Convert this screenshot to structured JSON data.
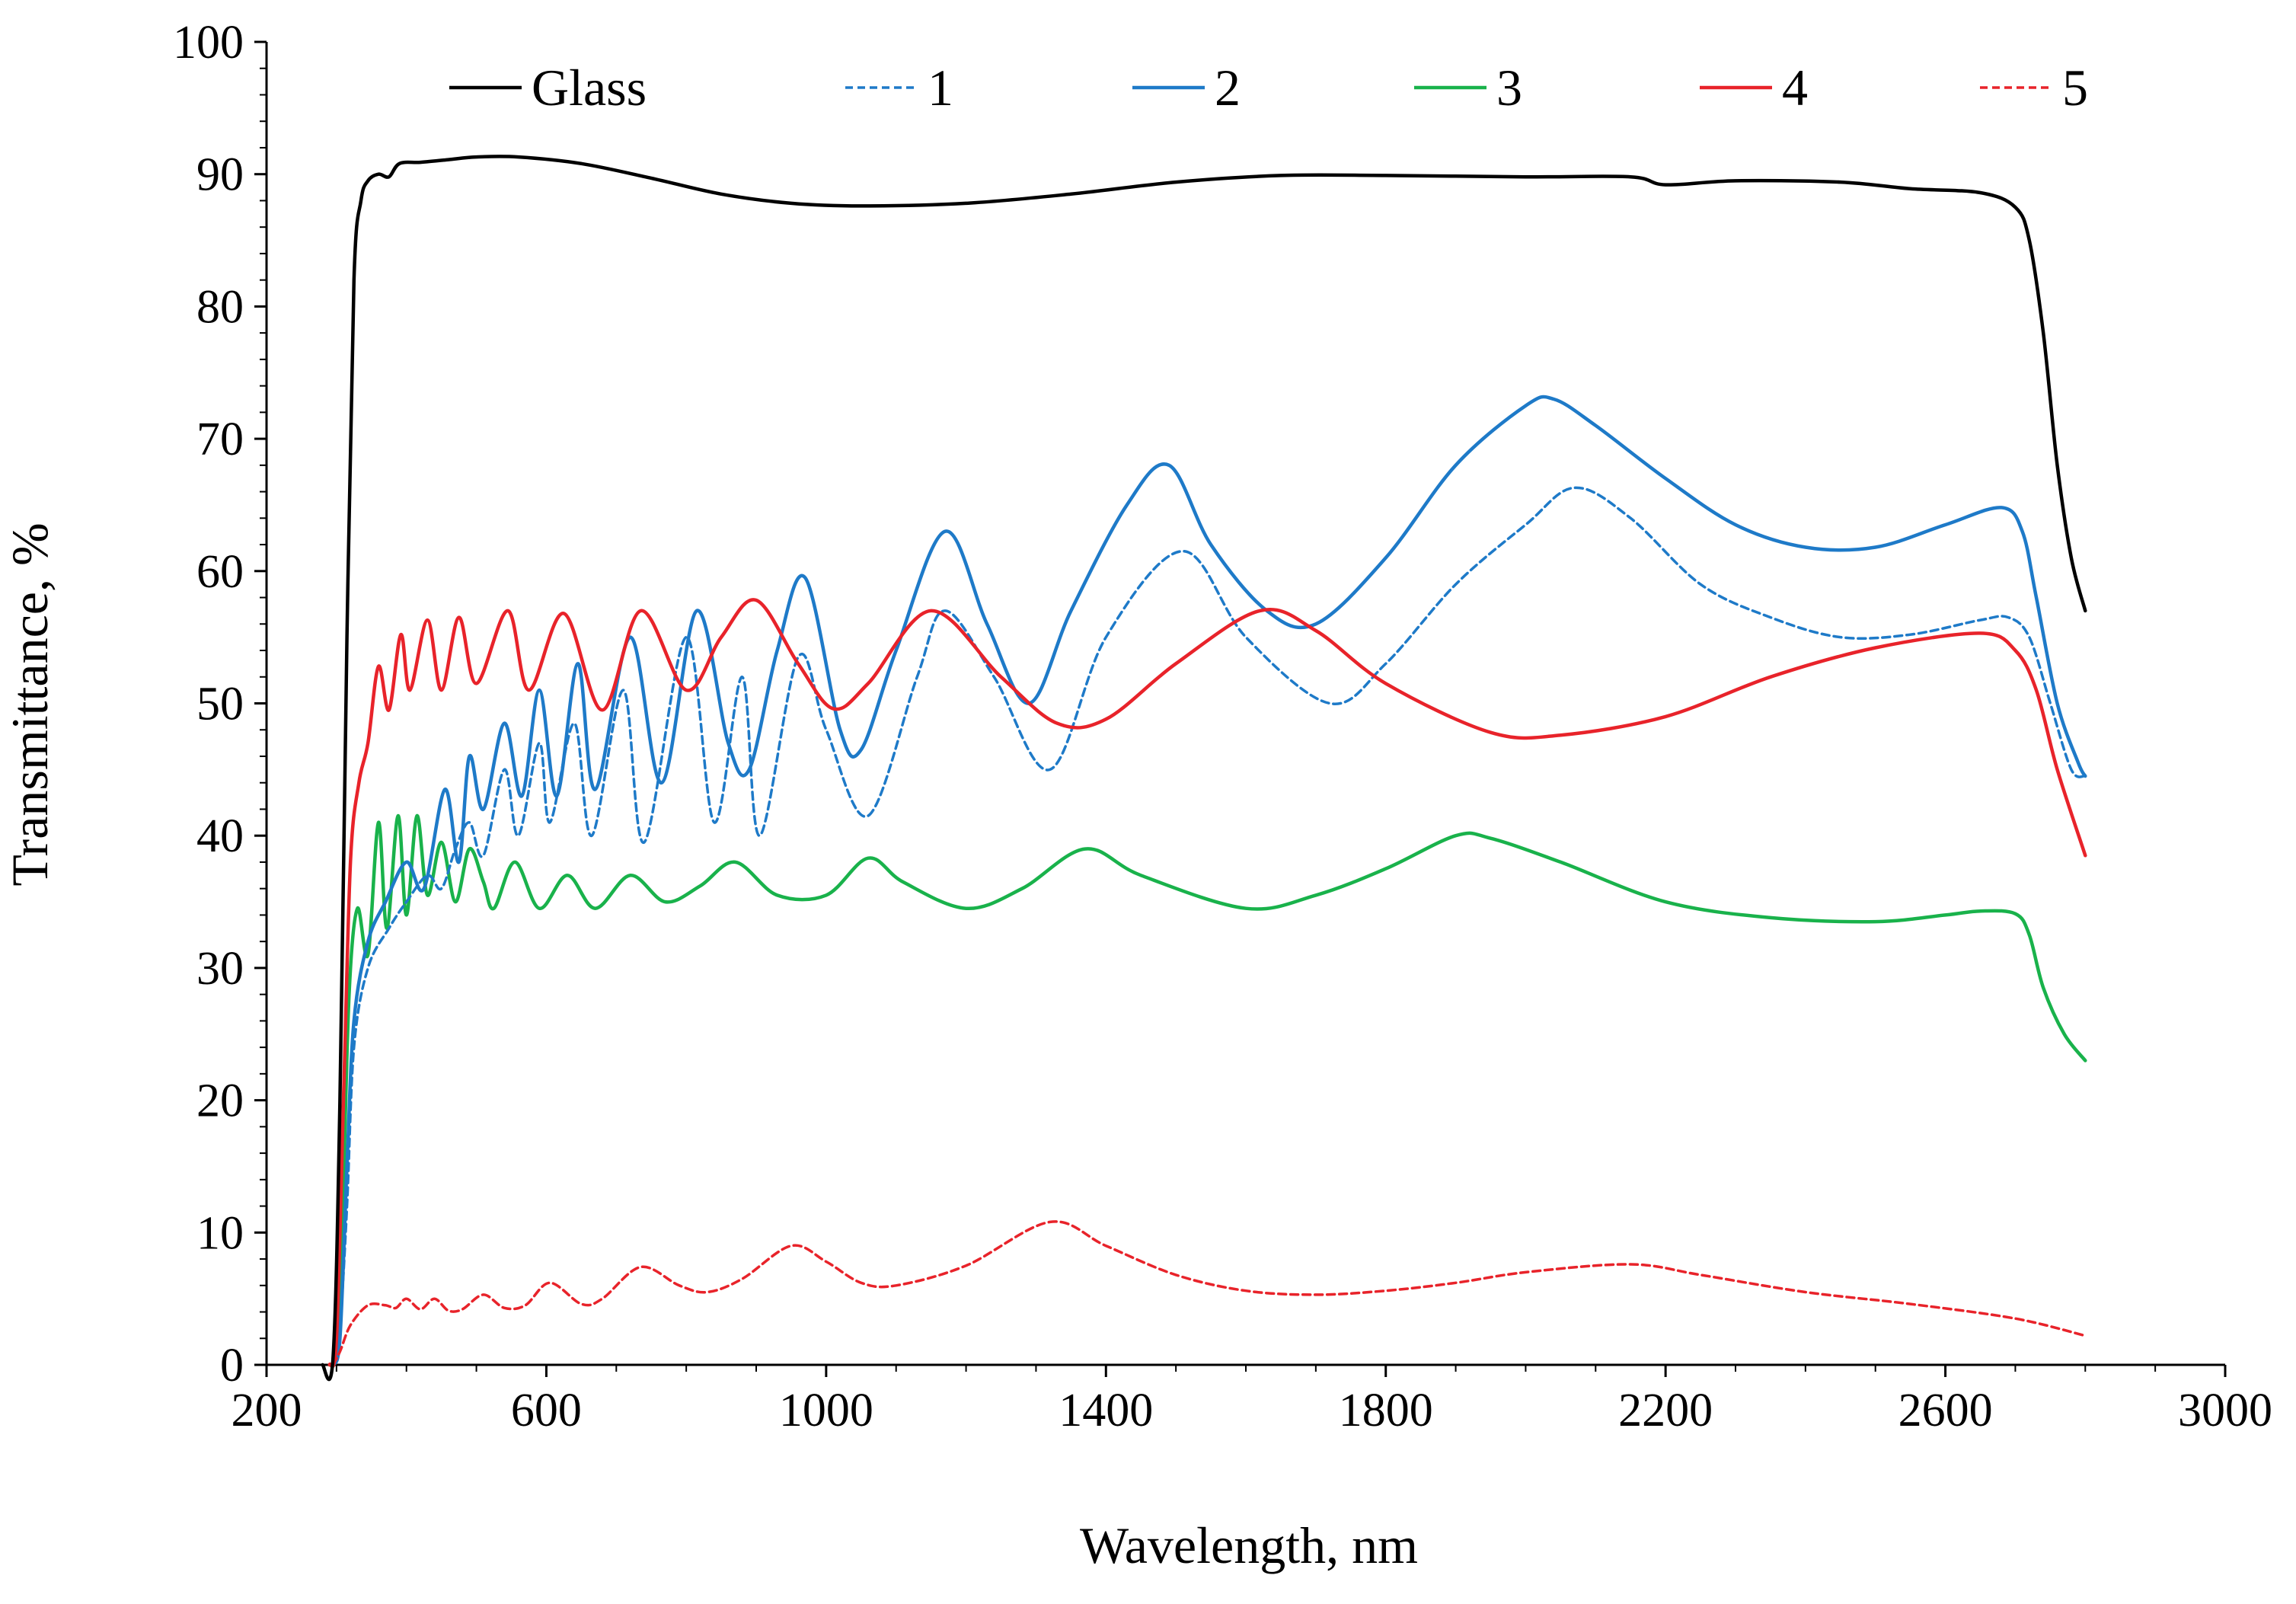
{
  "chart_data": {
    "type": "line",
    "title": "",
    "xlabel": "Wavelength, nm",
    "ylabel": "Transmittance, %",
    "xlim": [
      200,
      3000
    ],
    "ylim": [
      0,
      100
    ],
    "x_ticks": [
      200,
      600,
      1000,
      1400,
      1800,
      2200,
      2600,
      3000
    ],
    "y_ticks": [
      0,
      10,
      20,
      30,
      40,
      50,
      60,
      70,
      80,
      90,
      100
    ],
    "x_tick_labels": [
      "200",
      "600",
      "1000",
      "1400",
      "1800",
      "2200",
      "2600",
      "3000"
    ],
    "y_tick_labels": [
      "0",
      "10",
      "20",
      "30",
      "40",
      "50",
      "60",
      "70",
      "80",
      "90",
      "100"
    ],
    "legend_position": "top",
    "series": [
      {
        "name": "Glass",
        "color": "#000000",
        "dash": "solid",
        "points": [
          [
            280,
            0
          ],
          [
            295,
            0.5
          ],
          [
            305,
            20
          ],
          [
            315,
            55
          ],
          [
            325,
            82
          ],
          [
            335,
            88
          ],
          [
            345,
            89.5
          ],
          [
            360,
            90
          ],
          [
            375,
            89.8
          ],
          [
            390,
            90.8
          ],
          [
            420,
            90.9
          ],
          [
            460,
            91.1
          ],
          [
            500,
            91.3
          ],
          [
            560,
            91.3
          ],
          [
            650,
            90.8
          ],
          [
            750,
            89.7
          ],
          [
            850,
            88.5
          ],
          [
            950,
            87.8
          ],
          [
            1050,
            87.6
          ],
          [
            1200,
            87.8
          ],
          [
            1350,
            88.5
          ],
          [
            1500,
            89.4
          ],
          [
            1650,
            89.9
          ],
          [
            1800,
            89.9
          ],
          [
            2000,
            89.8
          ],
          [
            2150,
            89.8
          ],
          [
            2200,
            89.2
          ],
          [
            2300,
            89.5
          ],
          [
            2450,
            89.4
          ],
          [
            2550,
            88.9
          ],
          [
            2650,
            88.6
          ],
          [
            2700,
            87.5
          ],
          [
            2720,
            85
          ],
          [
            2740,
            78
          ],
          [
            2760,
            68
          ],
          [
            2780,
            61
          ],
          [
            2800,
            57
          ]
        ]
      },
      {
        "name": "1",
        "color": "#1e7ac8",
        "dash": "dashed",
        "points": [
          [
            295,
            0
          ],
          [
            305,
            3
          ],
          [
            315,
            12
          ],
          [
            325,
            24
          ],
          [
            345,
            30
          ],
          [
            375,
            33
          ],
          [
            400,
            35
          ],
          [
            430,
            37
          ],
          [
            450,
            36
          ],
          [
            470,
            39
          ],
          [
            490,
            41
          ],
          [
            510,
            38.5
          ],
          [
            540,
            45
          ],
          [
            560,
            40
          ],
          [
            590,
            47
          ],
          [
            605,
            41
          ],
          [
            640,
            48.5
          ],
          [
            665,
            40
          ],
          [
            710,
            51
          ],
          [
            740,
            39.5
          ],
          [
            800,
            55
          ],
          [
            840,
            41
          ],
          [
            880,
            52
          ],
          [
            905,
            40
          ],
          [
            960,
            53.5
          ],
          [
            1000,
            48
          ],
          [
            1060,
            41.5
          ],
          [
            1130,
            52
          ],
          [
            1170,
            57
          ],
          [
            1240,
            52
          ],
          [
            1320,
            45
          ],
          [
            1400,
            55
          ],
          [
            1510,
            61.5
          ],
          [
            1600,
            55
          ],
          [
            1720,
            50
          ],
          [
            1800,
            53
          ],
          [
            1900,
            59
          ],
          [
            2000,
            63.5
          ],
          [
            2070,
            66.3
          ],
          [
            2150,
            64
          ],
          [
            2250,
            59
          ],
          [
            2350,
            56.5
          ],
          [
            2450,
            55
          ],
          [
            2550,
            55.2
          ],
          [
            2650,
            56.3
          ],
          [
            2690,
            56.5
          ],
          [
            2720,
            55
          ],
          [
            2750,
            50
          ],
          [
            2780,
            45
          ],
          [
            2800,
            44.5
          ]
        ]
      },
      {
        "name": "2",
        "color": "#1e7ac8",
        "dash": "solid",
        "points": [
          [
            295,
            0
          ],
          [
            305,
            2
          ],
          [
            315,
            15
          ],
          [
            325,
            26
          ],
          [
            345,
            32
          ],
          [
            370,
            35
          ],
          [
            400,
            38
          ],
          [
            425,
            36
          ],
          [
            455,
            43.5
          ],
          [
            475,
            38
          ],
          [
            490,
            46
          ],
          [
            510,
            42
          ],
          [
            540,
            48.5
          ],
          [
            565,
            43
          ],
          [
            590,
            51
          ],
          [
            615,
            43
          ],
          [
            645,
            53
          ],
          [
            670,
            43.5
          ],
          [
            720,
            55
          ],
          [
            765,
            44
          ],
          [
            815,
            57
          ],
          [
            860,
            47
          ],
          [
            890,
            45
          ],
          [
            930,
            54
          ],
          [
            970,
            59.5
          ],
          [
            1020,
            48
          ],
          [
            1050,
            46.5
          ],
          [
            1100,
            54
          ],
          [
            1170,
            63
          ],
          [
            1230,
            56
          ],
          [
            1290,
            50
          ],
          [
            1350,
            57
          ],
          [
            1430,
            65
          ],
          [
            1490,
            68
          ],
          [
            1550,
            62
          ],
          [
            1630,
            57
          ],
          [
            1700,
            56
          ],
          [
            1800,
            61
          ],
          [
            1900,
            68
          ],
          [
            2000,
            72.5
          ],
          [
            2040,
            73
          ],
          [
            2100,
            71
          ],
          [
            2200,
            67
          ],
          [
            2300,
            63.5
          ],
          [
            2400,
            61.8
          ],
          [
            2500,
            61.8
          ],
          [
            2600,
            63.5
          ],
          [
            2680,
            64.8
          ],
          [
            2710,
            63
          ],
          [
            2730,
            58
          ],
          [
            2760,
            50
          ],
          [
            2790,
            45.5
          ],
          [
            2800,
            44.5
          ]
        ]
      },
      {
        "name": "3",
        "color": "#19b24b",
        "dash": "solid",
        "points": [
          [
            290,
            0
          ],
          [
            300,
            1
          ],
          [
            308,
            10
          ],
          [
            318,
            28
          ],
          [
            330,
            34.5
          ],
          [
            345,
            31
          ],
          [
            360,
            41
          ],
          [
            372,
            33
          ],
          [
            388,
            41.5
          ],
          [
            400,
            34
          ],
          [
            415,
            41.5
          ],
          [
            430,
            35.5
          ],
          [
            450,
            39.5
          ],
          [
            470,
            35
          ],
          [
            490,
            39
          ],
          [
            510,
            36.5
          ],
          [
            525,
            34.5
          ],
          [
            555,
            38
          ],
          [
            590,
            34.5
          ],
          [
            630,
            37
          ],
          [
            670,
            34.5
          ],
          [
            720,
            37
          ],
          [
            770,
            35
          ],
          [
            820,
            36.2
          ],
          [
            870,
            38
          ],
          [
            930,
            35.5
          ],
          [
            1000,
            35.5
          ],
          [
            1060,
            38.3
          ],
          [
            1110,
            36.5
          ],
          [
            1200,
            34.5
          ],
          [
            1280,
            36
          ],
          [
            1370,
            39
          ],
          [
            1450,
            37
          ],
          [
            1600,
            34.5
          ],
          [
            1700,
            35.5
          ],
          [
            1800,
            37.5
          ],
          [
            1900,
            40
          ],
          [
            1950,
            39.8
          ],
          [
            2050,
            38
          ],
          [
            2200,
            35
          ],
          [
            2350,
            33.8
          ],
          [
            2500,
            33.5
          ],
          [
            2600,
            34
          ],
          [
            2650,
            34.3
          ],
          [
            2700,
            34.1
          ],
          [
            2720,
            32.5
          ],
          [
            2740,
            28.5
          ],
          [
            2770,
            25
          ],
          [
            2800,
            23
          ]
        ]
      },
      {
        "name": "4",
        "color": "#e8232a",
        "dash": "solid",
        "points": [
          [
            290,
            0
          ],
          [
            300,
            2
          ],
          [
            310,
            20
          ],
          [
            320,
            38
          ],
          [
            332,
            44
          ],
          [
            345,
            47
          ],
          [
            360,
            52.8
          ],
          [
            375,
            49.5
          ],
          [
            392,
            55.2
          ],
          [
            405,
            51
          ],
          [
            430,
            56.3
          ],
          [
            450,
            51
          ],
          [
            475,
            56.5
          ],
          [
            500,
            51.5
          ],
          [
            545,
            57
          ],
          [
            575,
            51
          ],
          [
            625,
            56.8
          ],
          [
            680,
            49.5
          ],
          [
            735,
            57
          ],
          [
            800,
            51
          ],
          [
            850,
            55
          ],
          [
            900,
            57.8
          ],
          [
            960,
            53
          ],
          [
            1010,
            49.6
          ],
          [
            1060,
            51.5
          ],
          [
            1150,
            57
          ],
          [
            1250,
            52
          ],
          [
            1330,
            48.5
          ],
          [
            1400,
            48.8
          ],
          [
            1500,
            53
          ],
          [
            1620,
            57
          ],
          [
            1700,
            55.5
          ],
          [
            1800,
            51.5
          ],
          [
            1950,
            47.8
          ],
          [
            2050,
            47.6
          ],
          [
            2200,
            49
          ],
          [
            2350,
            52
          ],
          [
            2500,
            54.2
          ],
          [
            2650,
            55.3
          ],
          [
            2700,
            54
          ],
          [
            2730,
            51
          ],
          [
            2760,
            45
          ],
          [
            2800,
            38.5
          ]
        ]
      },
      {
        "name": "5",
        "color": "#e8232a",
        "dash": "dashed",
        "points": [
          [
            295,
            0
          ],
          [
            305,
            1
          ],
          [
            320,
            3
          ],
          [
            345,
            4.5
          ],
          [
            370,
            4.5
          ],
          [
            385,
            4.3
          ],
          [
            400,
            5
          ],
          [
            420,
            4.2
          ],
          [
            440,
            5
          ],
          [
            460,
            4.1
          ],
          [
            480,
            4.2
          ],
          [
            510,
            5.3
          ],
          [
            540,
            4.3
          ],
          [
            570,
            4.5
          ],
          [
            605,
            6.2
          ],
          [
            650,
            4.6
          ],
          [
            680,
            5
          ],
          [
            735,
            7.4
          ],
          [
            790,
            6
          ],
          [
            830,
            5.5
          ],
          [
            880,
            6.5
          ],
          [
            950,
            9
          ],
          [
            1000,
            7.8
          ],
          [
            1050,
            6.2
          ],
          [
            1100,
            6
          ],
          [
            1200,
            7.5
          ],
          [
            1320,
            10.8
          ],
          [
            1400,
            9
          ],
          [
            1500,
            6.8
          ],
          [
            1600,
            5.6
          ],
          [
            1700,
            5.3
          ],
          [
            1800,
            5.6
          ],
          [
            1900,
            6.2
          ],
          [
            2000,
            7
          ],
          [
            2150,
            7.6
          ],
          [
            2250,
            6.8
          ],
          [
            2400,
            5.5
          ],
          [
            2550,
            4.6
          ],
          [
            2700,
            3.5
          ],
          [
            2800,
            2.2
          ]
        ]
      }
    ]
  }
}
